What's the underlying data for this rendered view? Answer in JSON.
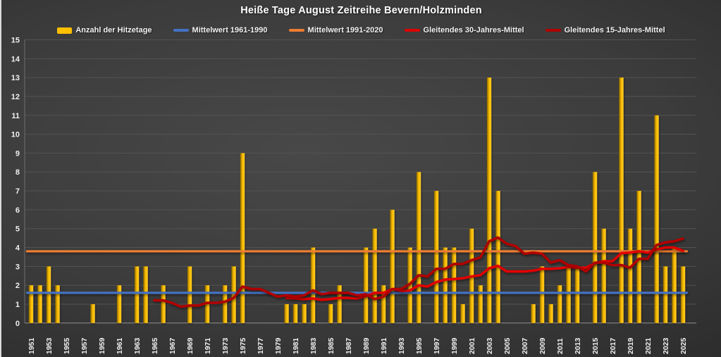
{
  "chart_data": {
    "type": "bar",
    "title": "Heiße Tage August Zeitreihe Bevern/Holzminden",
    "start_year": 1951,
    "end_year": 2025,
    "ylim": [
      0,
      15
    ],
    "yticks": [
      0,
      1,
      2,
      3,
      4,
      5,
      6,
      7,
      8,
      9,
      10,
      11,
      12,
      13,
      14,
      15
    ],
    "xticks": [
      1951,
      1953,
      1955,
      1957,
      1959,
      1961,
      1963,
      1965,
      1967,
      1969,
      1971,
      1973,
      1975,
      1977,
      1979,
      1981,
      1983,
      1985,
      1987,
      1989,
      1991,
      1993,
      1995,
      1997,
      1999,
      2001,
      2003,
      2005,
      2007,
      2009,
      2011,
      2013,
      2015,
      2017,
      2019,
      2021,
      2023,
      2025
    ],
    "grid": true,
    "legend_position": "top",
    "bar_series": {
      "name": "Anzahl der Hitzetage",
      "color": "#FFC000",
      "values": [
        2,
        2,
        3,
        2,
        0,
        0,
        0,
        1,
        0,
        0,
        2,
        0,
        3,
        3,
        0,
        2,
        0,
        0,
        3,
        0,
        2,
        0,
        2,
        3,
        9,
        0,
        0,
        0,
        0,
        1,
        1,
        1,
        4,
        0,
        1,
        2,
        0,
        0,
        4,
        5,
        2,
        6,
        0,
        4,
        8,
        0,
        7,
        4,
        4,
        1,
        5,
        2,
        13,
        7,
        0,
        0,
        0,
        1,
        3,
        1,
        2,
        3,
        3,
        0,
        8,
        5,
        0,
        13,
        5,
        7,
        0,
        11,
        3,
        4,
        3
      ]
    },
    "reference_lines": [
      {
        "name": "Mittelwert 1961-1990",
        "color": "#4472C4",
        "value": 1.6
      },
      {
        "name": "Mittelwert 1991-2020",
        "color": "#ED7D31",
        "value": 3.8
      }
    ],
    "moving_averages": [
      {
        "name": "Gleitendes 30-Jahres-Mittel",
        "color": "#E00000",
        "start_year": 1980,
        "values": [
          1.33,
          1.3,
          1.27,
          1.3,
          1.23,
          1.27,
          1.33,
          1.33,
          1.3,
          1.43,
          1.6,
          1.6,
          1.8,
          1.7,
          1.73,
          2.0,
          1.93,
          2.17,
          2.3,
          2.33,
          2.37,
          2.47,
          2.53,
          2.9,
          3.03,
          2.73,
          2.73,
          2.73,
          2.77,
          2.87,
          2.87,
          2.9,
          2.97,
          2.93,
          2.93,
          3.17,
          3.27,
          3.27,
          3.7,
          3.73,
          3.8,
          3.73,
          3.9,
          4.0,
          4.0,
          3.83
        ]
      },
      {
        "name": "Gleitendes 15-Jahres-Mittel",
        "color": "#B00000",
        "start_year": 1965,
        "values": [
          1.2,
          1.2,
          1.07,
          0.87,
          0.93,
          0.93,
          1.07,
          1.07,
          1.13,
          1.33,
          1.93,
          1.8,
          1.8,
          1.6,
          1.4,
          1.47,
          1.4,
          1.47,
          1.73,
          1.53,
          1.6,
          1.6,
          1.6,
          1.47,
          1.53,
          1.27,
          1.4,
          1.8,
          1.8,
          2.07,
          2.53,
          2.47,
          2.87,
          2.87,
          3.13,
          3.13,
          3.33,
          3.47,
          4.33,
          4.53,
          4.2,
          4.07,
          3.67,
          3.73,
          3.67,
          3.2,
          3.33,
          3.07,
          3.0,
          2.73,
          3.2,
          3.2,
          3.07,
          3.07,
          2.93,
          3.4,
          3.4,
          4.13,
          4.27,
          4.33,
          4.47
        ]
      }
    ]
  }
}
